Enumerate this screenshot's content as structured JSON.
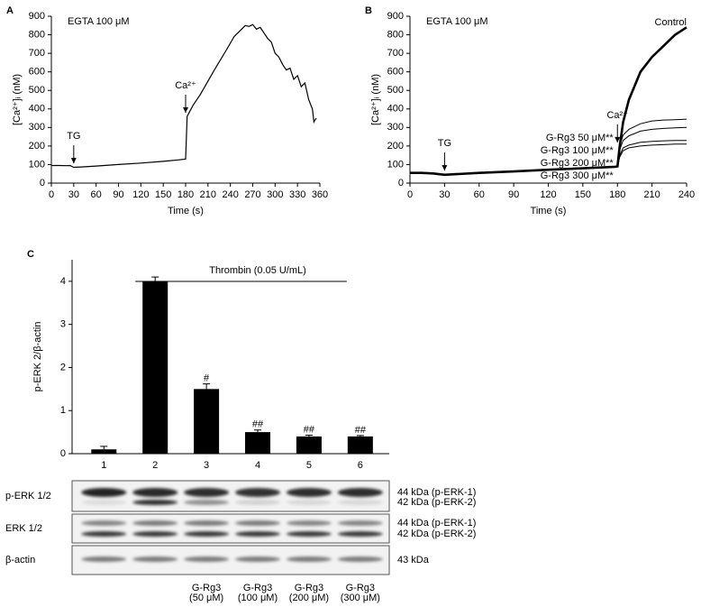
{
  "chart_data": [
    {
      "type": "line",
      "panel": "A",
      "note": "EGTA 100 μM",
      "xlabel": "Time (s)",
      "ylabel": "[Ca²⁺]ᵢ (nM)",
      "x": [
        0,
        10,
        20,
        25,
        30,
        40,
        60,
        90,
        120,
        150,
        170,
        180,
        182,
        190,
        200,
        210,
        220,
        235,
        245,
        255,
        260,
        265,
        270,
        275,
        280,
        290,
        295,
        300,
        305,
        310,
        315,
        320,
        325,
        330,
        335,
        340,
        345,
        350,
        352,
        355
      ],
      "series": [
        {
          "color": "#000000",
          "values": [
            95,
            95,
            94,
            95,
            85,
            87,
            92,
            100,
            108,
            117,
            125,
            130,
            360,
            420,
            480,
            550,
            620,
            720,
            790,
            830,
            850,
            845,
            855,
            830,
            840,
            780,
            760,
            700,
            680,
            640,
            610,
            620,
            560,
            580,
            520,
            540,
            450,
            400,
            330,
            350
          ]
        }
      ],
      "annotations": [
        {
          "text": "TG",
          "x": 30
        },
        {
          "text": "Ca²⁺",
          "x": 180
        }
      ],
      "xlim": [
        0,
        360
      ],
      "xticks": [
        0,
        30,
        60,
        90,
        120,
        150,
        180,
        210,
        240,
        270,
        300,
        330,
        360
      ],
      "ylim": [
        0,
        900
      ],
      "yticks": [
        0,
        100,
        200,
        300,
        400,
        500,
        600,
        700,
        800,
        900
      ]
    },
    {
      "type": "line",
      "panel": "B",
      "note": "EGTA 100 μM",
      "xlabel": "Time (s)",
      "ylabel": "[Ca²⁺]ᵢ (nM)",
      "x": [
        0,
        10,
        20,
        30,
        40,
        60,
        90,
        120,
        150,
        178,
        180,
        182,
        185,
        190,
        200,
        210,
        220,
        230,
        240
      ],
      "series": [
        {
          "name": "Control",
          "color": "#000000",
          "line_width": 2.6,
          "values": [
            55,
            55,
            52,
            45,
            48,
            55,
            63,
            72,
            80,
            88,
            90,
            200,
            330,
            450,
            600,
            680,
            740,
            800,
            840
          ]
        },
        {
          "name": "G-Rg3 50 μM**",
          "color": "#000000",
          "line_width": 1,
          "values": [
            55,
            55,
            52,
            45,
            48,
            55,
            63,
            72,
            80,
            88,
            90,
            200,
            260,
            290,
            320,
            335,
            340,
            342,
            345
          ]
        },
        {
          "name": "G-Rg3 100 μM**",
          "color": "#000000",
          "line_width": 1,
          "values": [
            55,
            55,
            52,
            45,
            48,
            55,
            63,
            72,
            80,
            88,
            90,
            180,
            230,
            255,
            280,
            290,
            295,
            298,
            300
          ]
        },
        {
          "name": "G-Rg3 200 μM**",
          "color": "#000000",
          "line_width": 1,
          "values": [
            55,
            55,
            52,
            45,
            48,
            55,
            63,
            72,
            80,
            88,
            90,
            150,
            190,
            205,
            220,
            225,
            228,
            230,
            230
          ]
        },
        {
          "name": "G-Rg3 300 μM**",
          "color": "#000000",
          "line_width": 1,
          "values": [
            55,
            55,
            52,
            45,
            48,
            55,
            63,
            72,
            80,
            88,
            90,
            140,
            175,
            190,
            200,
            205,
            207,
            210,
            210
          ]
        }
      ],
      "annotations": [
        {
          "text": "TG",
          "x": 30
        },
        {
          "text": "Ca²⁺",
          "x": 180
        }
      ],
      "xlim": [
        0,
        240
      ],
      "xticks": [
        0,
        30,
        60,
        90,
        120,
        150,
        180,
        210,
        240
      ],
      "ylim": [
        0,
        900
      ],
      "yticks": [
        0,
        100,
        200,
        300,
        400,
        500,
        600,
        700,
        800,
        900
      ]
    },
    {
      "type": "bar",
      "panel": "C",
      "ylabel": "p-ERK 2/β-actin",
      "bracket": "Thrombin (0.05 U/mL)",
      "categories": [
        "1",
        "2",
        "3",
        "4",
        "5",
        "6"
      ],
      "values": [
        0.1,
        4.0,
        1.5,
        0.5,
        0.4,
        0.4
      ],
      "errors": [
        0.07,
        0.1,
        0.12,
        0.05,
        0.03,
        0.02
      ],
      "significance": [
        null,
        null,
        "#",
        "##",
        "##",
        "##"
      ],
      "color": "#000000",
      "ylim": [
        0,
        4.5
      ],
      "yticks": [
        0,
        1,
        2,
        3,
        4
      ]
    }
  ],
  "blot": {
    "rows": [
      {
        "label": "p-ERK 1/2",
        "bands": [
          "44 kDa (p-ERK-1)",
          "42 kDa (p-ERK-2)"
        ]
      },
      {
        "label": "ERK 1/2",
        "bands": [
          "44 kDa (p-ERK-1)",
          "42 kDa (p-ERK-2)"
        ]
      },
      {
        "label": "β-actin",
        "bands": [
          "43 kDa"
        ]
      }
    ],
    "treatments": [
      {
        "drug": "G-Rg3",
        "dose": "(50 μM)"
      },
      {
        "drug": "G-Rg3",
        "dose": "(100 μM)"
      },
      {
        "drug": "G-Rg3",
        "dose": "(200 μM)"
      },
      {
        "drug": "G-Rg3",
        "dose": "(300 μM)"
      }
    ]
  }
}
